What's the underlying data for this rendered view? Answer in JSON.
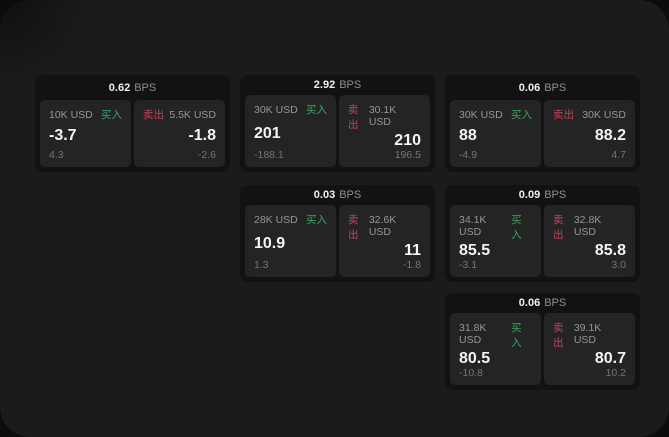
{
  "theme": {
    "page_bg": "#1b1b1b",
    "card_bg": "#121212",
    "panel_bg": "#242424",
    "buy_color": "#3aa564",
    "sell_color": "#c2455a",
    "value_color": "#f4f4f4",
    "label_color": "#969696"
  },
  "cards": [
    {
      "bps_value": "0.62",
      "bps_unit": "BPS",
      "grid": {
        "row": 1,
        "col": 1
      },
      "buy": {
        "amount": "10K USD",
        "side_label": "买入",
        "value": "-3.7",
        "sub": "4.3"
      },
      "sell": {
        "side_label": "卖出",
        "amount": "5.5K USD",
        "value": "-1.8",
        "sub": "-2.6"
      }
    },
    {
      "bps_value": "2.92",
      "bps_unit": "BPS",
      "grid": {
        "row": 1,
        "col": 2
      },
      "buy": {
        "amount": "30K USD",
        "side_label": "买入",
        "value": "201",
        "sub": "-188.1"
      },
      "sell": {
        "side_label": "卖出",
        "amount": "30.1K USD",
        "value": "210",
        "sub": "196.5"
      }
    },
    {
      "bps_value": "0.06",
      "bps_unit": "BPS",
      "grid": {
        "row": 1,
        "col": 3
      },
      "buy": {
        "amount": "30K USD",
        "side_label": "买入",
        "value": "88",
        "sub": "-4.9"
      },
      "sell": {
        "side_label": "卖出",
        "amount": "30K USD",
        "value": "88.2",
        "sub": "4.7"
      }
    },
    {
      "bps_value": "0.03",
      "bps_unit": "BPS",
      "grid": {
        "row": 2,
        "col": 2
      },
      "buy": {
        "amount": "28K USD",
        "side_label": "买入",
        "value": "10.9",
        "sub": "1.3"
      },
      "sell": {
        "side_label": "卖出",
        "amount": "32.6K USD",
        "value": "11",
        "sub": "-1.8"
      }
    },
    {
      "bps_value": "0.09",
      "bps_unit": "BPS",
      "grid": {
        "row": 2,
        "col": 3
      },
      "buy": {
        "amount": "34.1K USD",
        "side_label": "买入",
        "value": "85.5",
        "sub": "-3.1"
      },
      "sell": {
        "side_label": "卖出",
        "amount": "32.8K USD",
        "value": "85.8",
        "sub": "3.0"
      }
    },
    {
      "bps_value": "0.06",
      "bps_unit": "BPS",
      "grid": {
        "row": 3,
        "col": 3
      },
      "buy": {
        "amount": "31.8K USD",
        "side_label": "买入",
        "value": "80.5",
        "sub": "-10.8"
      },
      "sell": {
        "side_label": "卖出",
        "amount": "39.1K USD",
        "value": "80.7",
        "sub": "10.2"
      }
    }
  ]
}
